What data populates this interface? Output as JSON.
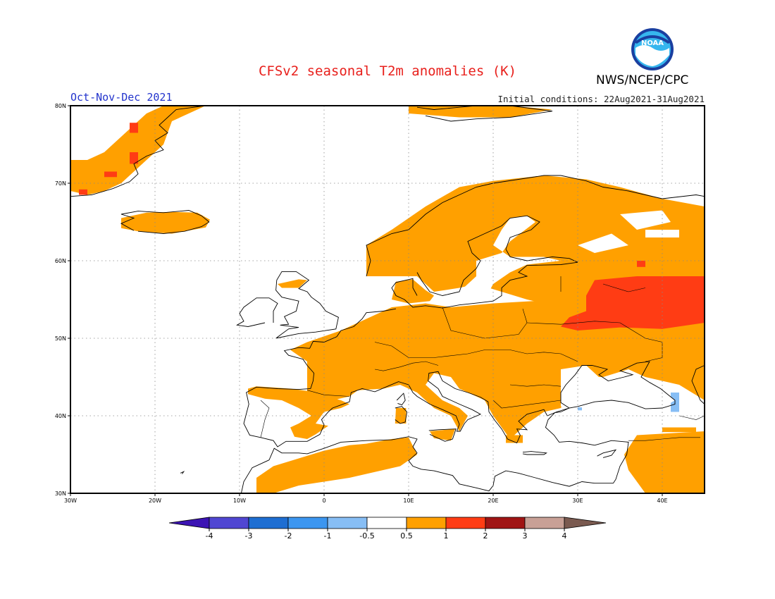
{
  "header": {
    "title": "CFSv2 seasonal T2m anomalies (K)",
    "agency": "NWS/NCEP/CPC",
    "logo_text": "NOAA",
    "season": "Oct-Nov-Dec 2021",
    "initial_conditions": "Initial conditions: 22Aug2021-31Aug2021"
  },
  "map": {
    "lon_range": [
      -30,
      45
    ],
    "lat_range": [
      30,
      80
    ],
    "lat_ticks": [
      "80N",
      "70N",
      "60N",
      "50N",
      "40N",
      "30N"
    ],
    "lon_ticks": [
      "30W",
      "20W",
      "10W",
      "0",
      "10E",
      "20E",
      "30E",
      "40E"
    ],
    "grid": "dotted",
    "colors": {
      "ocean": "#ffffff",
      "coast": "#000000",
      "anom_0_5_1": "#ffa000",
      "anom_1_2": "#ff3c14",
      "anom_m1_m0_5": "#87bef5"
    }
  },
  "colorbar": {
    "labels": [
      "-4",
      "-3",
      "-2",
      "-1",
      "-0.5",
      "0.5",
      "1",
      "2",
      "3",
      "4"
    ],
    "colors": [
      "#3c14b4",
      "#5046d2",
      "#1e6ed2",
      "#3c96f0",
      "#87bef5",
      "#ffffff",
      "#ffa000",
      "#ff3c14",
      "#a01414",
      "#c8a096",
      "#7a5a50"
    ]
  }
}
